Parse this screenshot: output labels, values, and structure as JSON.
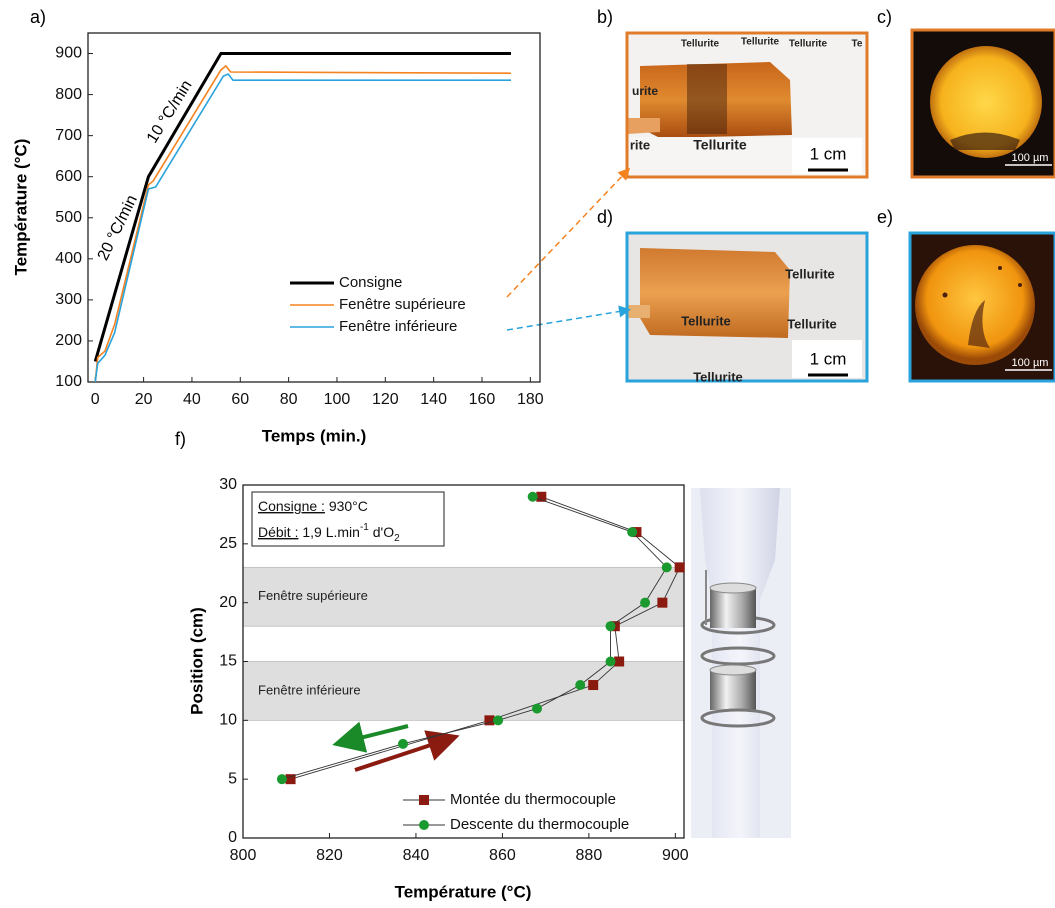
{
  "chart_data": [
    {
      "type": "line",
      "xlabel": "Temps (min.)",
      "ylabel": "Température (°C)",
      "xlim": [
        -3,
        184
      ],
      "ylim": [
        100,
        950
      ],
      "xticks": [
        0,
        20,
        40,
        60,
        80,
        100,
        120,
        140,
        160,
        180
      ],
      "yticks": [
        100,
        200,
        300,
        400,
        500,
        600,
        700,
        800,
        900
      ],
      "legend": "lower right",
      "annotations": [
        "20 °C/min",
        "10 °C/min"
      ],
      "series": [
        {
          "name": "Consigne",
          "color": "#000000",
          "x": [
            0,
            22,
            52,
            172
          ],
          "values": [
            150,
            600,
            900,
            900
          ]
        },
        {
          "name": "Fenêtre supérieure",
          "color": "#f58220",
          "x": [
            0,
            1,
            4,
            8,
            22,
            24,
            52,
            54,
            56,
            172
          ],
          "values": [
            100,
            160,
            175,
            240,
            580,
            590,
            860,
            870,
            855,
            852
          ]
        },
        {
          "name": "Fenêtre inférieure",
          "color": "#29a3dc",
          "x": [
            0,
            1,
            4,
            8,
            22,
            25,
            53,
            55,
            57,
            172
          ],
          "values": [
            100,
            145,
            165,
            220,
            570,
            575,
            845,
            850,
            835,
            835
          ]
        }
      ]
    },
    {
      "type": "line",
      "xlabel": "Température (°C)",
      "ylabel": "Position (cm)",
      "xlim": [
        800,
        902
      ],
      "ylim": [
        0,
        30
      ],
      "xticks": [
        800,
        820,
        840,
        860,
        880,
        900
      ],
      "yticks": [
        0,
        5,
        10,
        15,
        20,
        25,
        30
      ],
      "legend": "lower right",
      "bands": [
        {
          "label": "Fenêtre supérieure",
          "from": 18,
          "to": 23
        },
        {
          "label": "Fenêtre inférieure",
          "from": 10,
          "to": 15
        }
      ],
      "annotation_lines": [
        [
          "Consigne :",
          " 930°C"
        ],
        [
          "Débit :",
          " 1,9 L.min",
          "-1",
          " d'O",
          "2"
        ]
      ],
      "series": [
        {
          "name": "Montée du thermocouple",
          "color": "#8b1a10",
          "marker": "square",
          "x": [
            869,
            891,
            901,
            897,
            886,
            887,
            881,
            857,
            811
          ],
          "values": [
            29,
            26,
            23,
            20,
            18,
            15,
            13,
            10,
            5
          ]
        },
        {
          "name": "Descente du thermocouple",
          "color": "#1a9a2e",
          "marker": "circle",
          "x": [
            867,
            890,
            898,
            893,
            885,
            885,
            878,
            868,
            859,
            837,
            809
          ],
          "values": [
            29,
            26,
            23,
            20,
            18,
            15,
            13,
            11,
            10,
            8,
            5
          ]
        }
      ]
    }
  ],
  "panel_labels": [
    "a)",
    "b)",
    "c)",
    "d)",
    "e)",
    "f)"
  ],
  "photo_texts": {
    "b": [
      "Tellurite",
      "Tellurite",
      "Tellurite",
      "urite",
      "rite",
      "Tellurite",
      "Te"
    ],
    "d": [
      "Tellurite",
      "Tellurite",
      "Tellurite",
      "Tellurite"
    ]
  },
  "scale_bars": [
    "1 cm",
    "100 µm",
    "1 cm",
    "100 µm"
  ]
}
